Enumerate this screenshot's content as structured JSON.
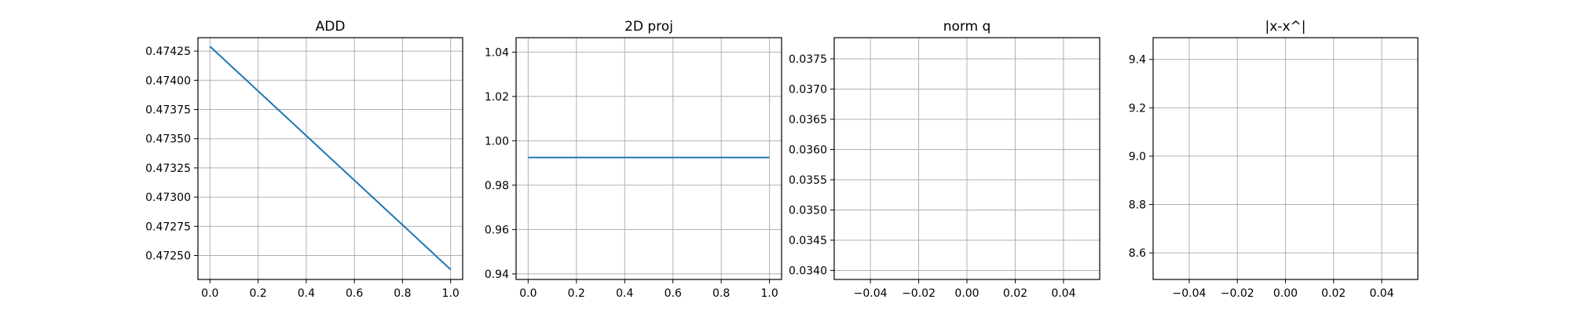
{
  "chart_data": [
    {
      "type": "line",
      "title": "ADD",
      "xlabel": "",
      "ylabel": "",
      "xlim": [
        -0.05,
        1.05
      ],
      "ylim": [
        0.472295,
        0.474365
      ],
      "xticks": [
        0.0,
        0.2,
        0.4,
        0.6,
        0.8,
        1.0
      ],
      "xtick_labels": [
        "0.0",
        "0.2",
        "0.4",
        "0.6",
        "0.8",
        "1.0"
      ],
      "yticks": [
        0.4725,
        0.47275,
        0.473,
        0.47325,
        0.4735,
        0.47375,
        0.474,
        0.47425
      ],
      "ytick_labels": [
        "0.47250",
        "0.47275",
        "0.47300",
        "0.47325",
        "0.47350",
        "0.47375",
        "0.47400",
        "0.47425"
      ],
      "grid": true,
      "series": [
        {
          "x": [
            0,
            1
          ],
          "y": [
            0.47429,
            0.47238
          ],
          "color": "#1f77b4"
        }
      ]
    },
    {
      "type": "line",
      "title": "2D proj",
      "xlabel": "",
      "ylabel": "",
      "xlim": [
        -0.05,
        1.05
      ],
      "ylim": [
        0.9375,
        1.0465
      ],
      "xticks": [
        0.0,
        0.2,
        0.4,
        0.6,
        0.8,
        1.0
      ],
      "xtick_labels": [
        "0.0",
        "0.2",
        "0.4",
        "0.6",
        "0.8",
        "1.0"
      ],
      "yticks": [
        0.94,
        0.96,
        0.98,
        1.0,
        1.02,
        1.04
      ],
      "ytick_labels": [
        "0.94",
        "0.96",
        "0.98",
        "1.00",
        "1.02",
        "1.04"
      ],
      "grid": true,
      "series": [
        {
          "x": [
            0,
            1
          ],
          "y": [
            0.9925,
            0.9925
          ],
          "color": "#1f77b4"
        }
      ]
    },
    {
      "type": "line",
      "title": "norm q",
      "xlabel": "",
      "ylabel": "",
      "xlim": [
        -0.055,
        0.055
      ],
      "ylim": [
        0.03385,
        0.03785
      ],
      "xticks": [
        -0.04,
        -0.02,
        0.0,
        0.02,
        0.04
      ],
      "xtick_labels": [
        "−0.04",
        "−0.02",
        "0.00",
        "0.02",
        "0.04"
      ],
      "yticks": [
        0.034,
        0.0345,
        0.035,
        0.0355,
        0.036,
        0.0365,
        0.037,
        0.0375
      ],
      "ytick_labels": [
        "0.0340",
        "0.0345",
        "0.0350",
        "0.0355",
        "0.0360",
        "0.0365",
        "0.0370",
        "0.0375"
      ],
      "grid": true,
      "series": []
    },
    {
      "type": "line",
      "title": "|x-x^|",
      "xlabel": "",
      "ylabel": "",
      "xlim": [
        -0.055,
        0.055
      ],
      "ylim": [
        8.49,
        9.49
      ],
      "xticks": [
        -0.04,
        -0.02,
        0.0,
        0.02,
        0.04
      ],
      "xtick_labels": [
        "−0.04",
        "−0.02",
        "0.00",
        "0.02",
        "0.04"
      ],
      "yticks": [
        8.6,
        8.8,
        9.0,
        9.2,
        9.4
      ],
      "ytick_labels": [
        "8.6",
        "8.8",
        "9.0",
        "9.2",
        "9.4"
      ],
      "grid": true,
      "series": []
    }
  ]
}
